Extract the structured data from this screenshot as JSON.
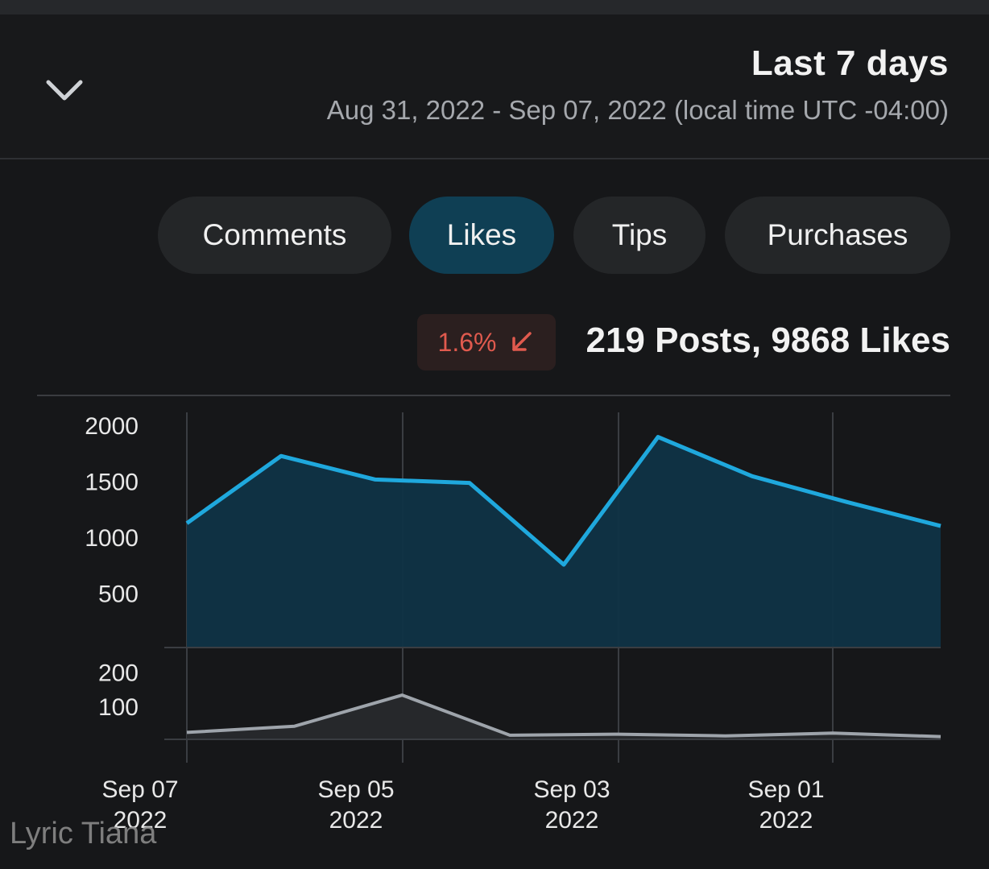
{
  "header": {
    "title": "Last 7 days",
    "subtitle": "Aug 31, 2022 - Sep 07, 2022 (local time UTC -04:00)",
    "dropdown_icon": "chevron-down-icon"
  },
  "tabs": [
    {
      "label": "Purchases",
      "active": false
    },
    {
      "label": "Tips",
      "active": false
    },
    {
      "label": "Likes",
      "active": true
    },
    {
      "label": "Comments",
      "active": false
    }
  ],
  "summary": {
    "text": "219 Posts, 9868 Likes",
    "change": "1.6%",
    "change_direction": "down",
    "change_color": "#e05a4e"
  },
  "watermark": "Lyric Tiana",
  "chart_data": [
    {
      "type": "area",
      "series": [
        {
          "name": "Likes",
          "color": "#1fa8dd",
          "values": [
            1085,
            1300,
            1530,
            1880,
            740,
            1470,
            1500,
            1710,
            1110
          ]
        }
      ],
      "x": [
        "Aug 31",
        "Sep 01",
        "Sep 01",
        "Sep 02",
        "Sep 03",
        "Sep 04",
        "Sep 05",
        "Sep 06",
        "Sep 07"
      ],
      "x_ticks": [
        "Sep 01 2022",
        "Sep 03 2022",
        "Sep 05 2022",
        "Sep 07 2022"
      ],
      "y_ticks": [
        "500",
        "1000",
        "1500",
        "2000"
      ],
      "ylim": [
        0,
        2100
      ],
      "grid": "vertical"
    },
    {
      "type": "area",
      "series": [
        {
          "name": "Posts",
          "color": "#9ea4ab",
          "values": [
            8,
            18,
            10,
            15,
            12,
            128,
            38,
            20
          ]
        }
      ],
      "x": [
        "Aug 31",
        "Sep 01",
        "Sep 02",
        "Sep 03",
        "Sep 03",
        "Sep 05",
        "Sep 06",
        "Sep 07"
      ],
      "y_ticks": [
        "100",
        "200"
      ],
      "ylim": [
        0,
        210
      ],
      "grid": "vertical"
    }
  ]
}
